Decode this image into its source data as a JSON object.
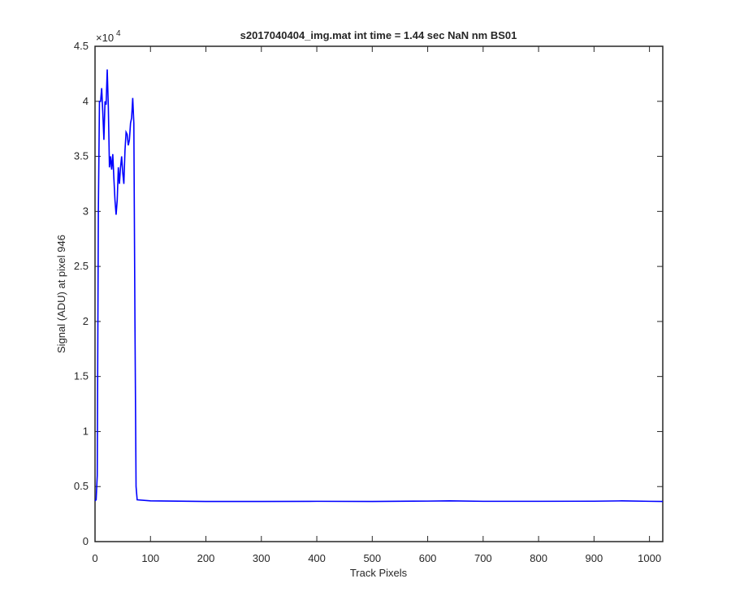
{
  "chart_data": {
    "type": "line",
    "title": "s2017040404_img.mat int time = 1.44 sec  NaN nm BS01",
    "xlabel": "Track Pixels",
    "ylabel": "Signal (ADU) at pixel 946",
    "y_multiplier": "×10",
    "y_multiplier_exponent": "4",
    "xlim": [
      0,
      1024
    ],
    "xticks": [
      0,
      100,
      200,
      300,
      400,
      500,
      600,
      700,
      800,
      900,
      1000
    ],
    "ylim": [
      0,
      4.5
    ],
    "yticks": [
      0,
      0.5,
      1,
      1.5,
      2,
      2.5,
      3,
      3.5,
      4,
      4.5
    ],
    "grid": false,
    "series": [
      {
        "color": "#0000ff",
        "x": [
          0,
          2,
          4,
          6,
          8,
          10,
          12,
          14,
          16,
          18,
          20,
          22,
          24,
          26,
          28,
          30,
          32,
          34,
          36,
          38,
          40,
          42,
          44,
          46,
          48,
          50,
          52,
          54,
          56,
          58,
          60,
          62,
          64,
          66,
          68,
          70,
          72,
          74,
          76,
          100,
          200,
          300,
          400,
          500,
          600,
          640,
          700,
          800,
          900,
          950,
          1000,
          1024
        ],
        "values": [
          0.37,
          0.38,
          0.6,
          3.0,
          4.0,
          4.0,
          4.12,
          3.9,
          3.65,
          4.0,
          3.97,
          4.29,
          3.95,
          3.4,
          3.5,
          3.38,
          3.52,
          3.3,
          3.1,
          2.97,
          3.1,
          3.4,
          3.25,
          3.4,
          3.5,
          3.35,
          3.25,
          3.55,
          3.72,
          3.7,
          3.6,
          3.65,
          3.8,
          3.85,
          4.03,
          3.8,
          2.0,
          0.5,
          0.38,
          0.37,
          0.365,
          0.365,
          0.366,
          0.365,
          0.368,
          0.37,
          0.366,
          0.366,
          0.367,
          0.37,
          0.366,
          0.365
        ]
      }
    ]
  }
}
